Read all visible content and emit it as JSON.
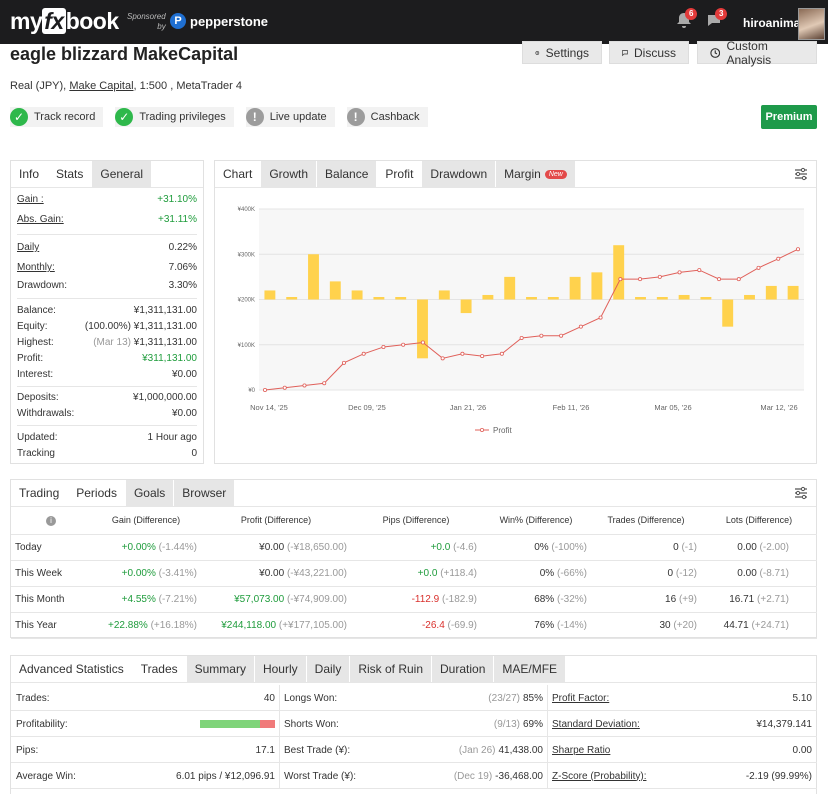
{
  "header": {
    "logo_pre": "my",
    "logo_fx": "fx",
    "logo_post": "book",
    "sponsored_line1": "Sponsored",
    "sponsored_line2": "by",
    "sponsor_name": "pepperstone",
    "sponsor_initial": "P",
    "notifications_count": "6",
    "messages_count": "3",
    "username": "hiroanimal"
  },
  "page": {
    "title": "eagle blizzard MakeCapital",
    "actions": {
      "settings": "Settings",
      "discuss": "Discuss",
      "custom": "Custom Analysis"
    },
    "sub_prefix": "Real (JPY),",
    "sub_broker": "Make Capital",
    "sub_suffix": ", 1:500 , MetaTrader 4",
    "status": {
      "track": "Track record",
      "privileges": "Trading privileges",
      "live": "Live update",
      "cashback": "Cashback"
    },
    "premium": "Premium"
  },
  "info": {
    "tabs": {
      "info": "Info",
      "stats": "Stats",
      "general": "General"
    },
    "gain_lbl": "Gain :",
    "gain_val": "+31.10%",
    "abs_lbl": "Abs. Gain:",
    "abs_val": "+31.11%",
    "daily_lbl": "Daily",
    "daily_val": "0.22%",
    "monthly_lbl": "Monthly:",
    "monthly_val": "7.06%",
    "drawdown_lbl": "Drawdown:",
    "drawdown_val": "3.30%",
    "balance_lbl": "Balance:",
    "balance_val": "¥1,311,131.00",
    "equity_lbl": "Equity:",
    "equity_pct": "(100.00%)",
    "equity_val": "¥1,311,131.00",
    "highest_lbl": "Highest:",
    "highest_date": "(Mar 13)",
    "highest_val": "¥1,311,131.00",
    "profit_lbl": "Profit:",
    "profit_val": "¥311,131.00",
    "interest_lbl": "Interest:",
    "interest_val": "¥0.00",
    "deposits_lbl": "Deposits:",
    "deposits_val": "¥1,000,000.00",
    "withdrawals_lbl": "Withdrawals:",
    "withdrawals_val": "¥0.00",
    "updated_lbl": "Updated:",
    "updated_val": "1 Hour ago",
    "tracking_lbl": "Tracking",
    "tracking_val": "0"
  },
  "chart_panel": {
    "tabs": {
      "chart": "Chart",
      "growth": "Growth",
      "balance": "Balance",
      "profit": "Profit",
      "drawdown": "Drawdown",
      "margin": "Margin",
      "new": "New"
    }
  },
  "chart_data": {
    "type": "bar+line",
    "y_ticks": [
      "¥0",
      "¥100K",
      "¥200K",
      "¥300K",
      "¥400K"
    ],
    "ylim": [
      0,
      400000
    ],
    "x_ticks": [
      "Nov 14, '25",
      "Dec 09, '25",
      "Jan 21, '26",
      "Feb 11, '26",
      "Mar 05, '26",
      "Mar 12, '26"
    ],
    "legend": "Profit",
    "bar_color": "#ffd24d",
    "line_color": "#e0605a",
    "bars": [
      2,
      0,
      10,
      4,
      2,
      0,
      0,
      -13,
      2,
      -3,
      1,
      5,
      0,
      0,
      5,
      6,
      12,
      0,
      0,
      1,
      0,
      -6,
      1,
      3,
      3
    ],
    "series": [
      {
        "name": "Profit",
        "values": [
          0,
          5000,
          10000,
          15000,
          60000,
          80000,
          95000,
          100000,
          105000,
          70000,
          80000,
          75000,
          80000,
          115000,
          120000,
          120000,
          140000,
          160000,
          245000,
          245000,
          250000,
          260000,
          265000,
          245000,
          245000,
          270000,
          290000,
          311131
        ]
      }
    ]
  },
  "periods": {
    "tabs": {
      "trading": "Trading",
      "periods": "Periods",
      "goals": "Goals",
      "browser": "Browser"
    },
    "cols": [
      "Gain (Difference)",
      "Profit (Difference)",
      "Pips (Difference)",
      "Win% (Difference)",
      "Trades (Difference)",
      "Lots (Difference)"
    ],
    "rows": [
      {
        "label": "Today",
        "gain": "+0.00%",
        "gain_d": "(-1.44%)",
        "profit": "¥0.00",
        "profit_d": "(-¥18,650.00)",
        "pips": "+0.0",
        "pips_d": "(-4.6)",
        "win": "0%",
        "win_d": "(-100%)",
        "trades": "0",
        "trades_d": "(-1)",
        "lots": "0.00",
        "lots_d": "(-2.00)"
      },
      {
        "label": "This Week",
        "gain": "+0.00%",
        "gain_d": "(-3.41%)",
        "profit": "¥0.00",
        "profit_d": "(-¥43,221.00)",
        "pips": "+0.0",
        "pips_d": "(+118.4)",
        "win": "0%",
        "win_d": "(-66%)",
        "trades": "0",
        "trades_d": "(-12)",
        "lots": "0.00",
        "lots_d": "(-8.71)"
      },
      {
        "label": "This Month",
        "gain": "+4.55%",
        "gain_d": "(-7.21%)",
        "profit": "¥57,073.00",
        "profit_d": "(-¥74,909.00)",
        "pips": "-112.9",
        "pips_d": "(-182.9)",
        "win": "68%",
        "win_d": "(-32%)",
        "trades": "16",
        "trades_d": "(+9)",
        "lots": "16.71",
        "lots_d": "(+2.71)"
      },
      {
        "label": "This Year",
        "gain": "+22.88%",
        "gain_d": "(+16.18%)",
        "profit": "¥244,118.00",
        "profit_d": "(+¥177,105.00)",
        "pips": "-26.4",
        "pips_d": "(-69.9)",
        "win": "76%",
        "win_d": "(-14%)",
        "trades": "30",
        "trades_d": "(+20)",
        "lots": "44.71",
        "lots_d": "(+24.71)"
      }
    ]
  },
  "advanced": {
    "tabs": {
      "adv": "Advanced Statistics",
      "trades": "Trades",
      "summary": "Summary",
      "hourly": "Hourly",
      "daily": "Daily",
      "risk": "Risk of Ruin",
      "duration": "Duration",
      "mae": "MAE/MFE"
    },
    "trades_lbl": "Trades:",
    "trades_val": "40",
    "profitability_lbl": "Profitability:",
    "profitability_win": 0.8,
    "pips_lbl": "Pips:",
    "pips_val": "17.1",
    "avgwin_lbl": "Average Win:",
    "avgwin_val": "6.01 pips / ¥12,096.91",
    "longs_lbl": "Longs Won:",
    "longs_frac": "(23/27)",
    "longs_val": "85%",
    "shorts_lbl": "Shorts Won:",
    "shorts_frac": "(9/13)",
    "shorts_val": "69%",
    "best_lbl": "Best Trade (¥):",
    "best_date": "(Jan 26)",
    "best_val": "41,438.00",
    "worst_lbl": "Worst Trade (¥):",
    "worst_date": "(Dec 19)",
    "worst_val": "-36,468.00",
    "pf_lbl": "Profit Factor:",
    "pf_val": "5.10",
    "sd_lbl": "Standard Deviation:",
    "sd_val": "¥14,379.141",
    "sharpe_lbl": "Sharpe Ratio",
    "sharpe_val": "0.00",
    "z_lbl": "Z-Score (Probability):",
    "z_val": "-2.19 (99.99%)"
  }
}
